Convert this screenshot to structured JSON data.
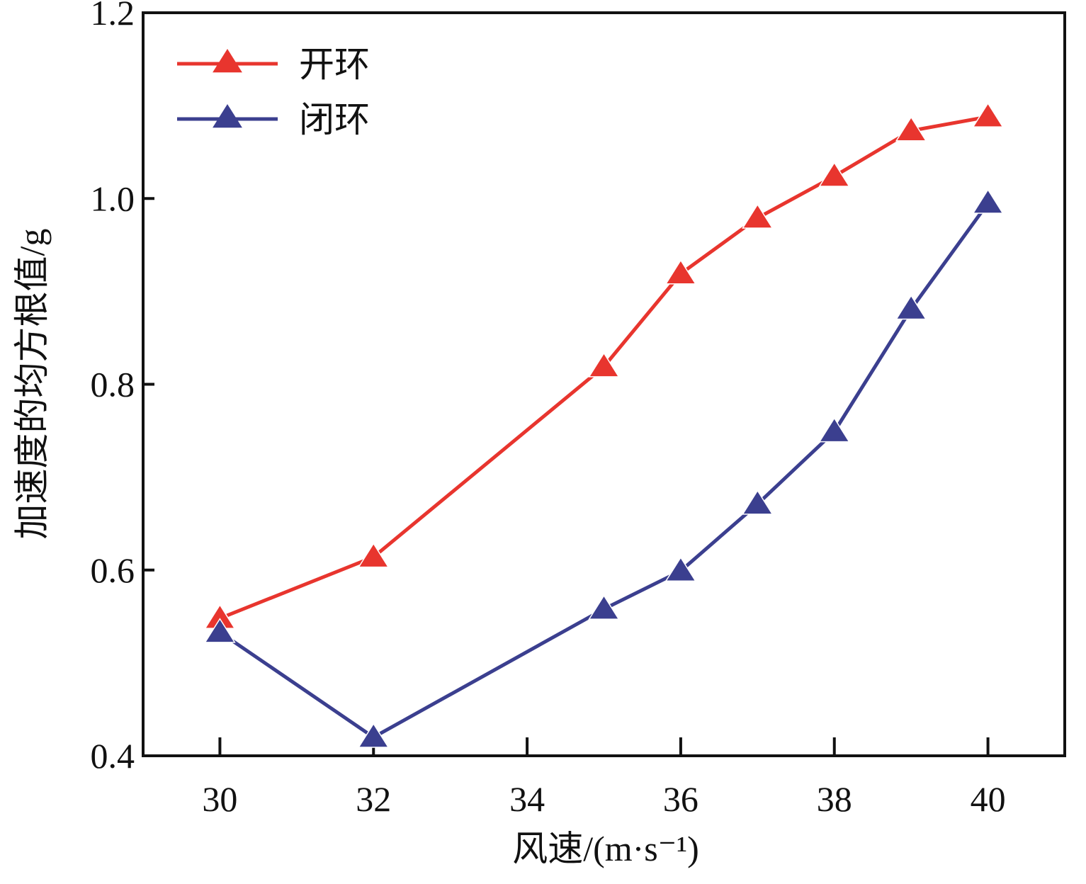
{
  "chart_data": {
    "type": "line",
    "xlabel": "风速/(m·s⁻¹)",
    "ylabel": "加速度的均方根值/g",
    "x": [
      30,
      32,
      35,
      36,
      37,
      38,
      39,
      40
    ],
    "series": [
      {
        "name": "开环",
        "color": "#e8352e",
        "values": [
          0.548,
          0.614,
          0.819,
          0.919,
          0.979,
          1.024,
          1.073,
          1.088
        ]
      },
      {
        "name": "闭环",
        "color": "#3b3f8f",
        "values": [
          0.533,
          0.42,
          0.558,
          0.599,
          0.671,
          0.749,
          0.881,
          0.995
        ]
      }
    ],
    "xlim": [
      29,
      41
    ],
    "xticks": [
      30,
      32,
      34,
      36,
      38,
      40
    ],
    "ylim": [
      0.4,
      1.2
    ],
    "yticks": [
      0.4,
      0.6,
      0.8,
      {
        "value": 1,
        "label": "1.0"
      },
      1.2
    ],
    "legend": "upper-left",
    "marker": "triangle"
  }
}
